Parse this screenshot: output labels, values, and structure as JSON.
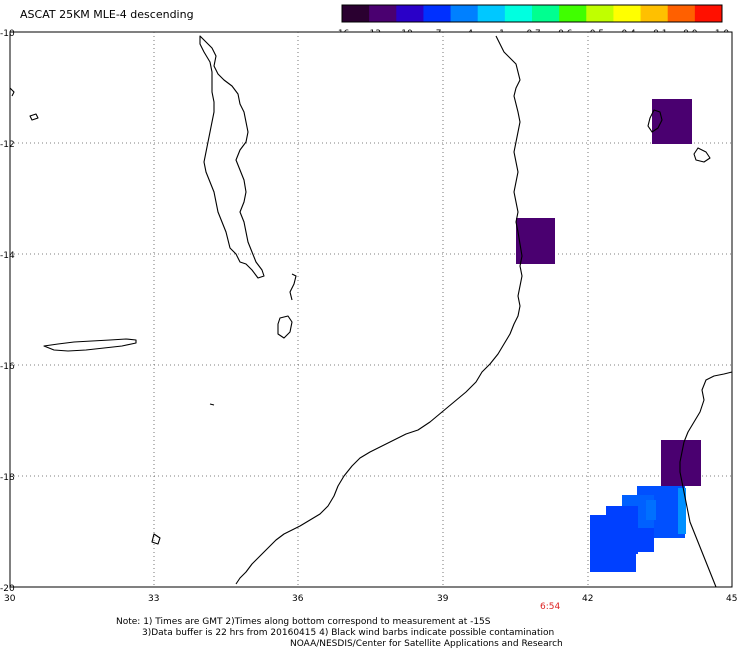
{
  "title": "ASCAT 25KM MLE-4 descending",
  "colorbar": {
    "colors": [
      "#2a0030",
      "#4a0070",
      "#2a00c8",
      "#0030ff",
      "#0080ff",
      "#00c8ff",
      "#00ffe0",
      "#00ff90",
      "#40ff00",
      "#c0ff00",
      "#ffff00",
      "#ffc000",
      "#ff6000",
      "#ff1000"
    ],
    "labels": [
      "-16",
      "-13",
      "-10",
      "-7",
      "-4",
      "-1",
      "-0.7",
      "-0.6",
      "-0.5",
      "-0.4",
      "-0.1",
      "0.0",
      "1.0"
    ]
  },
  "axes": {
    "x_ticks": [
      "30",
      "33",
      "36",
      "39",
      "42",
      "45"
    ],
    "y_ticks": [
      "-10",
      "-12",
      "-14",
      "-16",
      "-18",
      "-20"
    ]
  },
  "time_label": "6:54",
  "notes": {
    "line1": "Note: 1) Times are GMT 2)Times along bottom correspond to measurement at -15S",
    "line2": "3)Data buffer is 22 hrs from 20160415 4) Black wind barbs indicate possible contamination",
    "line3": "NOAA/NESDIS/Center for Satellite Applications and Research"
  },
  "colors": {
    "purple": "#4a0070",
    "blue": "#0040ff",
    "light_blue": "#0070ff",
    "cyan_blue": "#0090ff"
  }
}
